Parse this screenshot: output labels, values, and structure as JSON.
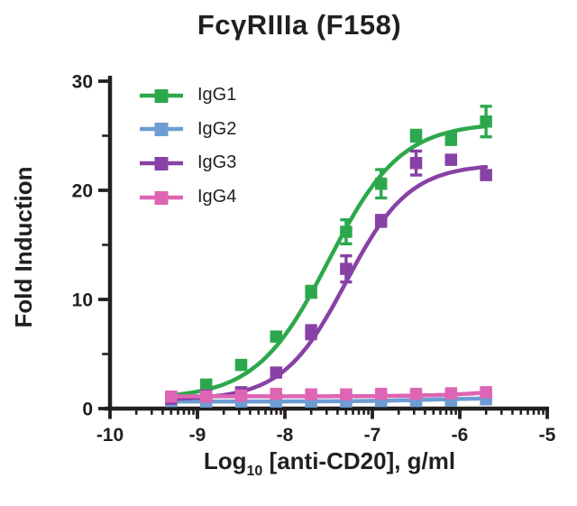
{
  "chart_data": {
    "type": "scatter",
    "title": "FcγRIIIa (F158)",
    "ylabel": "Fold Induction",
    "xlabel": {
      "prefix": "Log",
      "sub": "10",
      "suffix": " [anti-CD20], g/ml"
    },
    "xlim": [
      -10,
      -5
    ],
    "ylim": [
      0,
      30
    ],
    "xticks": [
      -10,
      -9,
      -8,
      -7,
      -6,
      -5
    ],
    "yticks": [
      0,
      10,
      20,
      30
    ],
    "yticks_minor": [
      5,
      15,
      25
    ],
    "x_minor_log_ticks": true,
    "grid": false,
    "legend_position": "inside-top-left",
    "x": [
      -9.3,
      -8.9,
      -8.5,
      -8.1,
      -7.7,
      -7.3,
      -6.9,
      -6.5,
      -6.1,
      -5.7
    ],
    "series": [
      {
        "name": "IgG1",
        "color": "#2ca84c",
        "values": [
          1.0,
          2.2,
          4.0,
          6.6,
          10.7,
          16.2,
          20.6,
          25.0,
          24.7,
          26.3
        ],
        "sem": [
          0.2,
          0.2,
          0.3,
          0.4,
          0.5,
          1.1,
          1.3,
          0.5,
          0.5,
          1.4
        ],
        "fit": {
          "bottom": 0.9,
          "top": 26.2,
          "logec50": -7.5,
          "hill": 1.05
        }
      },
      {
        "name": "IgG2",
        "color": "#6d9dd3",
        "values": [
          0.7,
          0.65,
          0.65,
          0.65,
          0.65,
          0.65,
          0.7,
          0.7,
          0.75,
          0.85
        ],
        "sem": [
          0.15,
          0.15,
          0.15,
          0.15,
          0.15,
          0.15,
          0.15,
          0.15,
          0.15,
          0.15
        ],
        "fit": {
          "bottom": 0.65,
          "top": 1.0,
          "logec50": -6.3,
          "hill": 1.0
        }
      },
      {
        "name": "IgG3",
        "color": "#8841a4",
        "values": [
          0.9,
          1.2,
          1.5,
          3.3,
          7.0,
          12.8,
          17.2,
          22.5,
          22.8,
          21.4
        ],
        "sem": [
          0.2,
          0.2,
          0.3,
          0.4,
          0.6,
          1.2,
          0.5,
          1.1,
          0.4,
          0.4
        ],
        "fit": {
          "bottom": 0.8,
          "top": 22.4,
          "logec50": -7.3,
          "hill": 1.2
        }
      },
      {
        "name": "IgG4",
        "color": "#de65b3",
        "values": [
          1.1,
          1.1,
          1.2,
          1.35,
          1.3,
          1.3,
          1.35,
          1.35,
          1.4,
          1.5
        ],
        "sem": [
          0.15,
          0.15,
          0.15,
          0.15,
          0.15,
          0.15,
          0.15,
          0.15,
          0.15,
          0.15
        ],
        "fit": {
          "bottom": 1.12,
          "top": 2.6,
          "logec50": -5.2,
          "hill": 1.0
        }
      }
    ]
  }
}
